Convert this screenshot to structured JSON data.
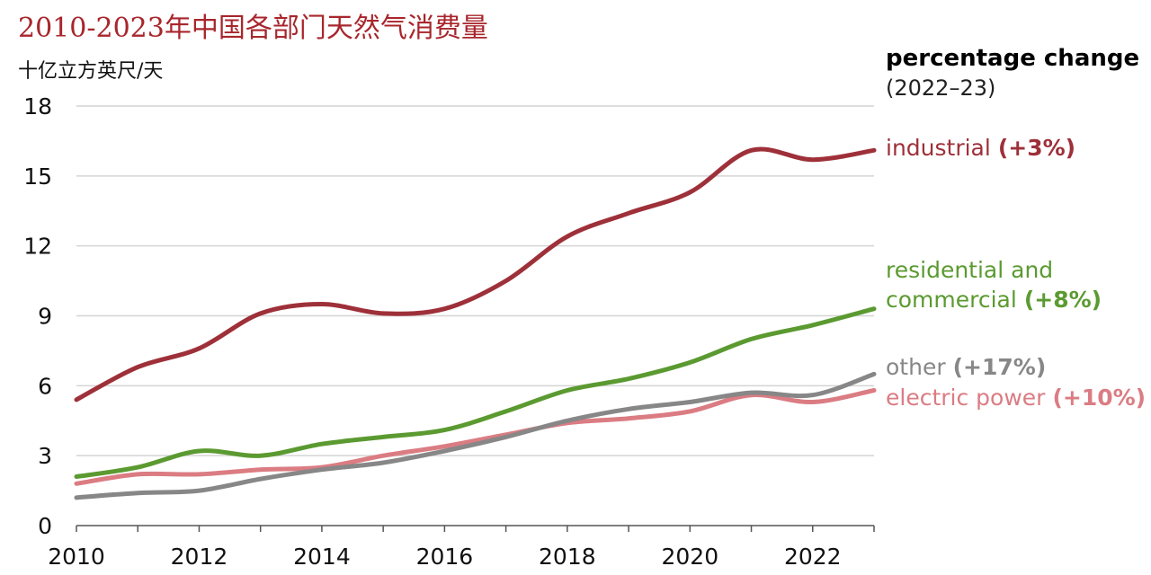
{
  "chart_data": {
    "type": "line",
    "title": "2010-2023年中国各部门天然气消费量",
    "ylabel": "十亿立方英尺/天",
    "xlabel": "",
    "xlim": [
      2010,
      2023
    ],
    "ylim": [
      0,
      18
    ],
    "yticks": [
      0,
      3,
      6,
      9,
      12,
      15,
      18
    ],
    "xticks": [
      2010,
      2012,
      2014,
      2016,
      2018,
      2020,
      2022
    ],
    "grid": "horizontal",
    "legend": {
      "heading": "percentage change",
      "subheading": "(2022–23)",
      "placement": "right"
    },
    "x": [
      2010,
      2011,
      2012,
      2013,
      2014,
      2015,
      2016,
      2017,
      2018,
      2019,
      2020,
      2021,
      2022,
      2023
    ],
    "series": [
      {
        "name": "industrial",
        "change": "(+3%)",
        "color": "#9e3039",
        "values": [
          5.4,
          6.8,
          7.6,
          9.1,
          9.5,
          9.1,
          9.3,
          10.5,
          12.4,
          13.4,
          14.3,
          16.1,
          15.7,
          16.1
        ]
      },
      {
        "name": "residential and commercial",
        "name_lines": [
          "residential and",
          "commercial"
        ],
        "change": "(+8%)",
        "color": "#5b9a31",
        "values": [
          2.1,
          2.5,
          3.2,
          3.0,
          3.5,
          3.8,
          4.1,
          4.9,
          5.8,
          6.3,
          7.0,
          8.0,
          8.6,
          9.3
        ]
      },
      {
        "name": "other",
        "change": "(+17%)",
        "color": "#878787",
        "values": [
          1.2,
          1.4,
          1.5,
          2.0,
          2.4,
          2.7,
          3.2,
          3.8,
          4.5,
          5.0,
          5.3,
          5.7,
          5.6,
          6.5
        ]
      },
      {
        "name": "electric power",
        "change": "(+10%)",
        "color": "#db7c83",
        "values": [
          1.8,
          2.2,
          2.2,
          2.4,
          2.5,
          3.0,
          3.4,
          3.9,
          4.4,
          4.6,
          4.9,
          5.6,
          5.3,
          5.8
        ]
      }
    ]
  }
}
